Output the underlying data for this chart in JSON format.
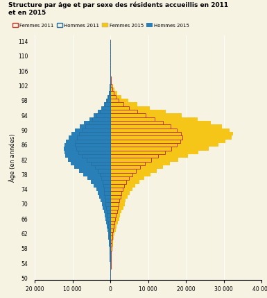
{
  "title": "Structure par âge et par sexe des résidents accueillis en 2011\net en 2015",
  "ylabel": "Âge (en années)",
  "ages": [
    50,
    51,
    52,
    53,
    54,
    55,
    56,
    57,
    58,
    59,
    60,
    61,
    62,
    63,
    64,
    65,
    66,
    67,
    68,
    69,
    70,
    71,
    72,
    73,
    74,
    75,
    76,
    77,
    78,
    79,
    80,
    81,
    82,
    83,
    84,
    85,
    86,
    87,
    88,
    89,
    90,
    91,
    92,
    93,
    94,
    95,
    96,
    97,
    98,
    99,
    100,
    101,
    102,
    103,
    104,
    105,
    106,
    107,
    108,
    109,
    110,
    111,
    112,
    113,
    114
  ],
  "femmes_2011": [
    30,
    40,
    55,
    70,
    90,
    120,
    160,
    210,
    270,
    340,
    420,
    510,
    610,
    730,
    880,
    1060,
    1260,
    1480,
    1720,
    1980,
    2200,
    2400,
    2650,
    2950,
    3300,
    3700,
    4250,
    4950,
    5800,
    6800,
    7900,
    9200,
    10800,
    12600,
    14400,
    16200,
    17600,
    18500,
    19000,
    18600,
    17500,
    16000,
    14000,
    11800,
    9300,
    7100,
    5000,
    3400,
    2200,
    1400,
    850,
    500,
    290,
    165,
    90,
    48,
    25,
    12,
    5,
    2,
    1,
    0,
    0,
    0,
    0
  ],
  "hommes_2011": [
    25,
    32,
    42,
    54,
    68,
    86,
    110,
    140,
    175,
    215,
    260,
    310,
    365,
    430,
    510,
    610,
    730,
    870,
    1010,
    1160,
    1280,
    1390,
    1500,
    1620,
    1740,
    1900,
    2100,
    2400,
    2800,
    3350,
    4100,
    5100,
    6300,
    7500,
    8500,
    9100,
    9400,
    9250,
    8900,
    8300,
    7600,
    6700,
    5700,
    4700,
    3650,
    2750,
    1950,
    1320,
    870,
    560,
    340,
    200,
    115,
    64,
    34,
    17,
    8,
    3,
    1,
    0,
    0,
    0,
    0,
    0,
    0
  ],
  "femmes_2015": [
    55,
    70,
    95,
    125,
    165,
    215,
    285,
    380,
    500,
    640,
    790,
    960,
    1150,
    1380,
    1640,
    1940,
    2270,
    2620,
    3000,
    3400,
    3750,
    4100,
    4550,
    5100,
    5800,
    6600,
    7700,
    9000,
    10600,
    12300,
    14000,
    15800,
    17900,
    20500,
    23200,
    26000,
    28500,
    30500,
    32000,
    32500,
    31500,
    29500,
    26500,
    23000,
    18800,
    14600,
    10500,
    7100,
    4700,
    3000,
    1820,
    1080,
    630,
    355,
    195,
    103,
    52,
    24,
    9,
    3,
    1,
    0,
    0,
    0,
    0
  ],
  "hommes_2015": [
    40,
    50,
    65,
    82,
    104,
    132,
    172,
    222,
    285,
    360,
    445,
    540,
    645,
    770,
    920,
    1100,
    1300,
    1520,
    1760,
    2020,
    2280,
    2550,
    2880,
    3280,
    3760,
    4350,
    5100,
    6000,
    7100,
    8300,
    9500,
    10500,
    11300,
    11900,
    12200,
    12300,
    12100,
    11700,
    11100,
    10300,
    9300,
    8100,
    6900,
    5600,
    4400,
    3350,
    2450,
    1690,
    1120,
    710,
    430,
    252,
    143,
    78,
    41,
    20,
    9,
    4,
    1,
    0,
    0,
    0,
    0,
    0,
    0
  ],
  "color_femmes_2011": "#c0392b",
  "color_hommes_2011": "#2471a3",
  "color_femmes_2015": "#f5c518",
  "color_hommes_2015": "#2980b9",
  "background_color": "#f7f3e3",
  "xlim": [
    -20000,
    40000
  ],
  "xticks": [
    -20000,
    -10000,
    0,
    10000,
    20000,
    30000,
    40000
  ],
  "xtick_labels": [
    "20 000",
    "10 000",
    "0",
    "10 000",
    "20 000",
    "30 000",
    "40 000"
  ]
}
